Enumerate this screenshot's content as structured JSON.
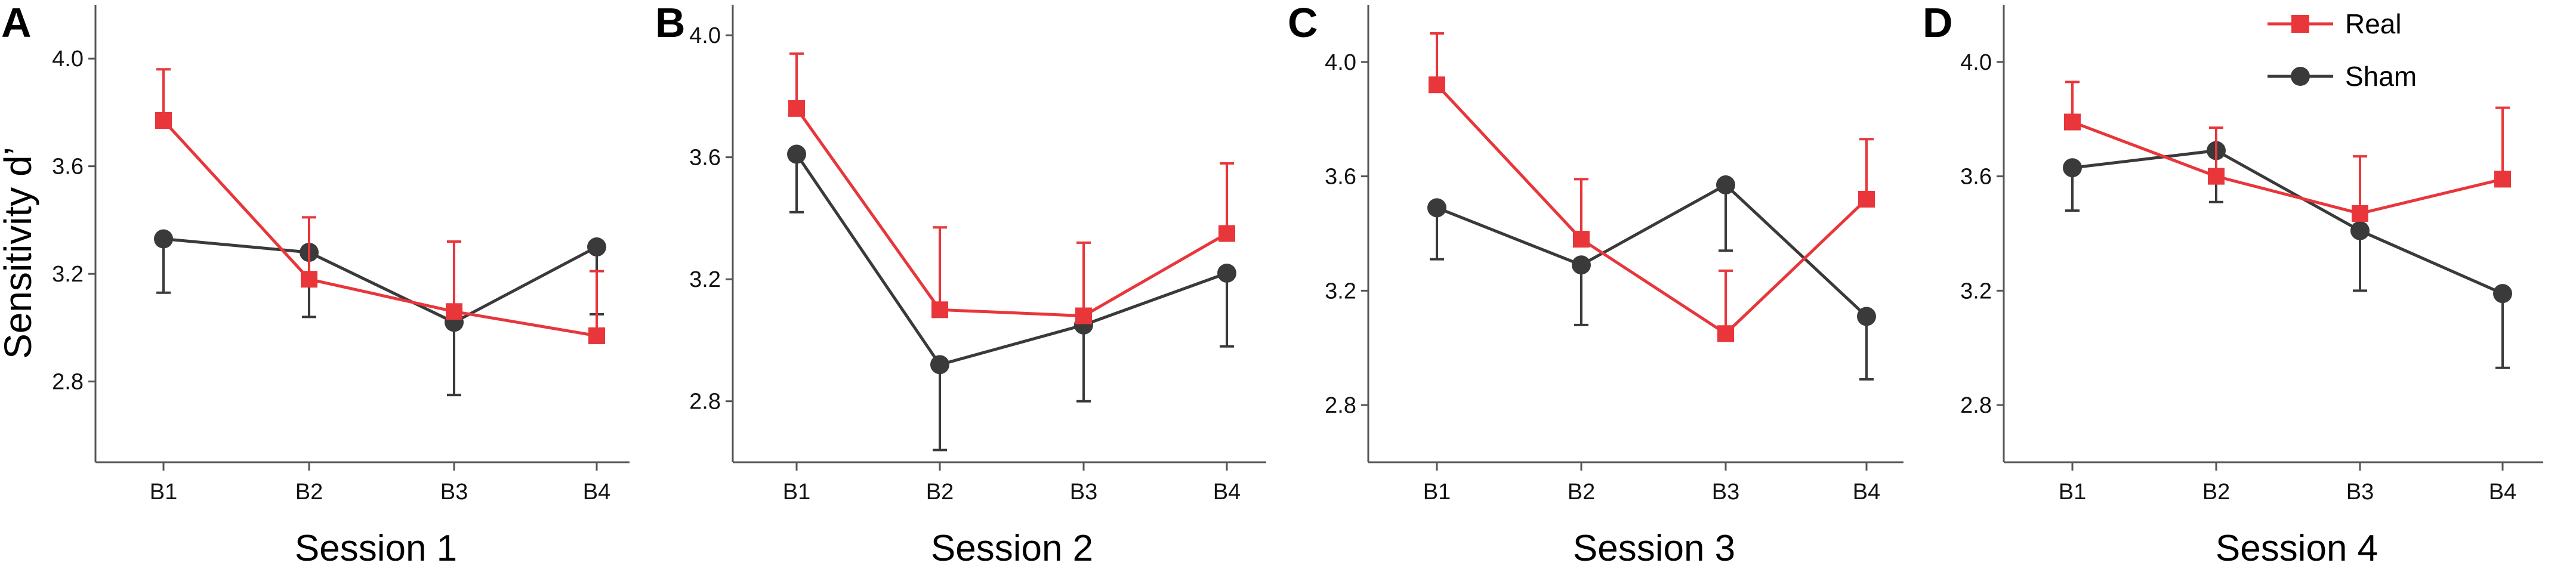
{
  "colors": {
    "real": "#e8363b",
    "sham": "#3a3a3a",
    "axis": "#555555"
  },
  "legend": {
    "position": "top-right",
    "items": [
      "Real",
      "Sham"
    ]
  },
  "chart_data": [
    {
      "type": "line",
      "panel_label": "A",
      "title": "Session 1",
      "xlabel": "Session 1",
      "ylabel": "Sensitivity d’",
      "categories": [
        "B1",
        "B2",
        "B3",
        "B4"
      ],
      "ylim": [
        2.5,
        4.2
      ],
      "yticks": [
        "2.8",
        "3.2",
        "3.6",
        "4.0"
      ],
      "series": [
        {
          "name": "Real",
          "values": [
            3.77,
            3.18,
            3.06,
            2.97
          ],
          "errors": [
            0.19,
            0.23,
            0.26,
            0.24
          ]
        },
        {
          "name": "Sham",
          "values": [
            3.33,
            3.28,
            3.02,
            3.3
          ],
          "errors": [
            0.2,
            0.24,
            0.27,
            0.25
          ]
        }
      ]
    },
    {
      "type": "line",
      "panel_label": "B",
      "title": "Session 2",
      "xlabel": "Session 2",
      "categories": [
        "B1",
        "B2",
        "B3",
        "B4"
      ],
      "ylim": [
        2.6,
        4.1
      ],
      "yticks": [
        "2.8",
        "3.2",
        "3.6",
        "4.0"
      ],
      "series": [
        {
          "name": "Real",
          "values": [
            3.76,
            3.1,
            3.08,
            3.35
          ],
          "errors": [
            0.18,
            0.27,
            0.24,
            0.23
          ]
        },
        {
          "name": "Sham",
          "values": [
            3.61,
            2.92,
            3.05,
            3.22
          ],
          "errors": [
            0.19,
            0.28,
            0.25,
            0.24
          ]
        }
      ]
    },
    {
      "type": "line",
      "panel_label": "C",
      "title": "Session 3",
      "xlabel": "Session 3",
      "categories": [
        "B1",
        "B2",
        "B3",
        "B4"
      ],
      "ylim": [
        2.6,
        4.2
      ],
      "yticks": [
        "2.8",
        "3.2",
        "3.6",
        "4.0"
      ],
      "series": [
        {
          "name": "Real",
          "values": [
            3.92,
            3.38,
            3.05,
            3.52
          ],
          "errors": [
            0.18,
            0.21,
            0.22,
            0.21
          ]
        },
        {
          "name": "Sham",
          "values": [
            3.49,
            3.29,
            3.57,
            3.11
          ],
          "errors": [
            0.18,
            0.21,
            0.23,
            0.22
          ]
        }
      ]
    },
    {
      "type": "line",
      "panel_label": "D",
      "title": "Session 4",
      "xlabel": "Session 4",
      "categories": [
        "B1",
        "B2",
        "B3",
        "B4"
      ],
      "ylim": [
        2.6,
        4.2
      ],
      "yticks": [
        "2.8",
        "3.2",
        "3.6",
        "4.0"
      ],
      "series": [
        {
          "name": "Real",
          "values": [
            3.79,
            3.6,
            3.47,
            3.59
          ],
          "errors": [
            0.14,
            0.17,
            0.2,
            0.25
          ]
        },
        {
          "name": "Sham",
          "values": [
            3.63,
            3.69,
            3.41,
            3.19
          ],
          "errors": [
            0.15,
            0.18,
            0.21,
            0.26
          ]
        }
      ]
    }
  ]
}
